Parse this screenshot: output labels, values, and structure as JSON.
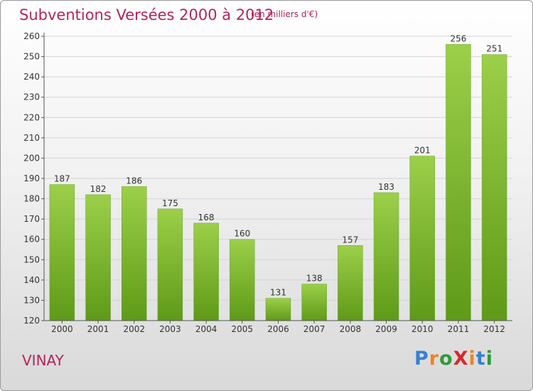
{
  "chart_data": {
    "type": "bar",
    "title": "Subventions Versées 2000 à 2012",
    "subtitle": "(en milliers d'€)",
    "categories": [
      "2000",
      "2001",
      "2002",
      "2003",
      "2004",
      "2005",
      "2006",
      "2007",
      "2008",
      "2009",
      "2010",
      "2011",
      "2012"
    ],
    "values": [
      187,
      182,
      186,
      175,
      168,
      160,
      131,
      138,
      157,
      183,
      201,
      256,
      251
    ],
    "ylim": [
      120,
      260
    ],
    "yticks": [
      120,
      130,
      140,
      150,
      160,
      170,
      180,
      190,
      200,
      210,
      220,
      230,
      240,
      250,
      260
    ],
    "grid": true,
    "bar_color": "#7cbb2c"
  },
  "footer": {
    "commune": "VINAY",
    "logo": "ProXiti"
  },
  "colors": {
    "title": "#b5245b"
  }
}
